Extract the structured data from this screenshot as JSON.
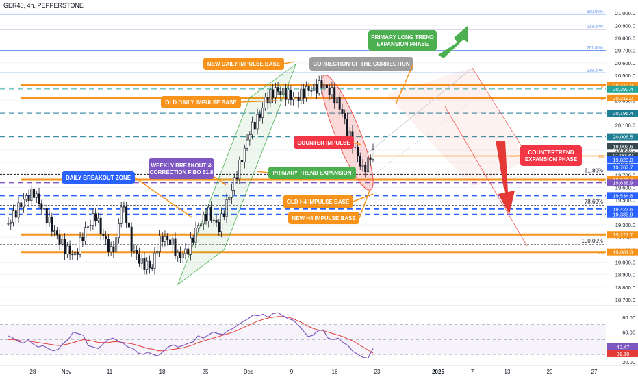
{
  "header": {
    "title": "GER40, 4h, PEPPERSTONE"
  },
  "chart_data": {
    "type": "candlestick",
    "symbol": "GER40",
    "timeframe": "4h",
    "broker": "PEPPERSTONE",
    "ylim": [
      18700,
      21050
    ],
    "price_ticks": [
      21000,
      20900,
      20800,
      20700,
      20600,
      20500,
      20400,
      20300,
      20200,
      20100,
      20000,
      19900,
      19800,
      19700,
      19600,
      19500,
      19400,
      19300,
      19200,
      19100,
      19000,
      18900,
      18800,
      18700
    ],
    "price_tick_labels": [
      "21,000.0",
      "20,900.0",
      "20,800.0",
      "20,700.0",
      "20,600.0",
      "20,500.0",
      "20,400.0",
      "20,300.0",
      "20,200.0",
      "20,100.0",
      "20,000.0",
      "19,900.0",
      "19,800.0",
      "19,700.0",
      "19,600.0",
      "19,500.0",
      "19,400.0",
      "19,300.0",
      "19,200.0",
      "19,100.0",
      "19,000.0",
      "18,900.0",
      "18,800.0",
      "18,700.0"
    ],
    "x_tick_labels": [
      "28",
      "Nov",
      "11",
      "18",
      "25",
      "Dec",
      "9",
      "16",
      "23",
      "2025",
      "7",
      "13",
      "20",
      "27"
    ],
    "close_path": [
      [
        0,
        19310
      ],
      [
        3,
        19500
      ],
      [
        5,
        19560
      ],
      [
        7,
        19400
      ],
      [
        9,
        19240
      ],
      [
        11,
        19110
      ],
      [
        13,
        19050
      ],
      [
        15,
        19260
      ],
      [
        17,
        19380
      ],
      [
        18,
        19250
      ],
      [
        20,
        19080
      ],
      [
        21,
        19170
      ],
      [
        22,
        19460
      ],
      [
        23,
        19360
      ],
      [
        24,
        19120
      ],
      [
        26,
        18990
      ],
      [
        28,
        18960
      ],
      [
        29,
        19130
      ],
      [
        30,
        19200
      ],
      [
        32,
        19150
      ],
      [
        33,
        19040
      ],
      [
        35,
        19100
      ],
      [
        37,
        19300
      ],
      [
        39,
        19400
      ],
      [
        40,
        19330
      ],
      [
        41,
        19280
      ],
      [
        42,
        19410
      ],
      [
        44,
        19650
      ],
      [
        46,
        19900
      ],
      [
        47,
        20050
      ],
      [
        49,
        20180
      ],
      [
        50,
        20300
      ],
      [
        52,
        20380
      ],
      [
        54,
        20350
      ],
      [
        56,
        20310
      ],
      [
        58,
        20380
      ],
      [
        60,
        20400
      ],
      [
        61,
        20430
      ],
      [
        62,
        20390
      ],
      [
        63,
        20360
      ],
      [
        64,
        20290
      ],
      [
        65,
        20200
      ],
      [
        66,
        20050
      ],
      [
        67,
        19960
      ],
      [
        68,
        19850
      ],
      [
        69,
        19740
      ],
      [
        70,
        19800
      ],
      [
        71,
        19900
      ]
    ],
    "horizontal_levels": [
      {
        "price": 20419.9,
        "label": "20,419.9",
        "color": "#f7931a",
        "style": "solid",
        "width": 3,
        "tag": "D"
      },
      {
        "price": 20319.0,
        "label": "20,319.0",
        "color": "#f7931a",
        "style": "solid",
        "width": 3,
        "tag": "D"
      },
      {
        "price": 19853.3,
        "label": "19,853.3",
        "color": "#f7931a",
        "style": "solid",
        "width": 1.5,
        "tag": "H4"
      },
      {
        "price": 19663.4,
        "label": "19,663.4",
        "color": "#f7931a",
        "style": "solid",
        "width": 3,
        "tag": "H4"
      },
      {
        "price": 19221.7,
        "label": "19,221.7",
        "color": "#f7931a",
        "style": "solid",
        "width": 3,
        "tag": "W"
      },
      {
        "price": 19081.3,
        "label": "19,081.3",
        "color": "#f7931a",
        "style": "solid",
        "width": 3,
        "tag": "MN"
      },
      {
        "price": 20390.4,
        "label": "20,390.4",
        "color": "#26a69a",
        "style": "dashed",
        "width": 1
      },
      {
        "price": 20196.4,
        "label": "20,196.4",
        "color": "#1f7f94",
        "style": "dashed",
        "width": 1
      },
      {
        "price": 20006.5,
        "label": "20,006.5",
        "color": "#1f7f94",
        "style": "dashed",
        "width": 1
      },
      {
        "price": 19638.9,
        "label": "19,638.9",
        "color": "#7e57c2",
        "style": "dashed",
        "width": 2
      },
      {
        "price": 19534.6,
        "label": "19,534.6",
        "color": "#2962ff",
        "style": "dashed",
        "width": 2
      },
      {
        "price": 19427.6,
        "label": "19,427.6",
        "color": "#2962ff",
        "style": "dashed",
        "width": 2
      },
      {
        "price": 19383.9,
        "label": "19,383.9",
        "color": "#2962ff",
        "style": "dashed",
        "width": 2
      }
    ],
    "price_tags": [
      {
        "price": 19903.6,
        "label": "19,903.6",
        "color": "#37474f"
      },
      {
        "price": 19763.7,
        "label": "19,763.7",
        "color": "#2962ff"
      },
      {
        "price": 19823.0,
        "label": "19,823.0",
        "color": "#2962ff"
      }
    ],
    "countdown": "01:00:30",
    "fib_levels": [
      {
        "ratio": "300.00%",
        "price": 20990
      },
      {
        "ratio": "213.20%",
        "price": 20870
      },
      {
        "ratio": "261.80%",
        "price": 20700
      },
      {
        "ratio": "238.20%",
        "price": 20520
      },
      {
        "ratio": "61.80%",
        "price": 19705
      },
      {
        "ratio": "78.60%",
        "price": 19455
      },
      {
        "ratio": "100.00%",
        "price": 19140
      }
    ],
    "annotations": {
      "new_daily": "NEW DAILY IMPULSE BASE",
      "correction": "CORRECTION OF THE CORRECTION",
      "primary_long_1": "PRIMARY LONG TREND",
      "primary_long_2": "EXPANSION PHASE",
      "old_daily": "OLD DAILY IMPULSE BASE",
      "counter_impulse": "COUNTER IMPULSE",
      "countertrend_1": "COUNTERTREND",
      "countertrend_2": "EXPANSION PHASE",
      "weekly_1": "WEEKLY BREAKOUT &",
      "weekly_2": "CORRECTION FIBO 61.8",
      "daily_breakout": "DAILY BREAKOUT ZONE",
      "primary_trend": "PRIMARY TREND EXPANSION",
      "old_h4": "OLD H4 IMPULSE BASE",
      "new_h4": "NEW H4 IMPULSE BASE"
    },
    "indicator": {
      "type": "RSI",
      "ylim": [
        20,
        90
      ],
      "ticks": [
        80,
        60,
        40,
        20
      ],
      "tick_labels": [
        "80.00",
        "60.00",
        "40.00",
        "20.00"
      ],
      "value_label": "40.47",
      "signal_label": "31.10",
      "rsi": [
        55,
        52,
        48,
        45,
        50,
        44,
        40,
        42,
        38,
        35,
        37,
        45,
        50,
        60,
        58,
        56,
        42,
        40,
        38,
        44,
        50,
        52,
        48,
        45,
        40,
        38,
        32,
        30,
        33,
        30,
        28,
        34,
        40,
        43,
        40,
        42,
        45,
        47,
        55,
        52,
        56,
        60,
        58,
        57,
        62,
        65,
        70,
        74,
        78,
        83,
        82,
        84,
        80,
        85,
        86,
        82,
        78,
        76,
        70,
        62,
        54,
        56,
        62,
        63,
        52,
        50,
        52,
        46,
        42,
        34,
        30,
        26,
        25,
        38
      ],
      "signal": [
        50,
        50,
        49,
        48,
        48,
        47,
        46,
        45,
        44,
        43,
        42,
        43,
        44,
        46,
        48,
        50,
        49,
        48,
        46,
        46,
        46,
        47,
        47,
        46,
        45,
        44,
        42,
        40,
        38,
        37,
        35,
        35,
        36,
        37,
        38,
        39,
        41,
        43,
        46,
        48,
        50,
        52,
        54,
        56,
        58,
        60,
        63,
        66,
        69,
        72,
        75,
        77,
        79,
        80,
        81,
        81,
        80,
        78,
        75,
        72,
        68,
        65,
        63,
        62,
        60,
        58,
        56,
        54,
        51,
        48,
        44,
        40,
        36,
        32
      ]
    }
  }
}
